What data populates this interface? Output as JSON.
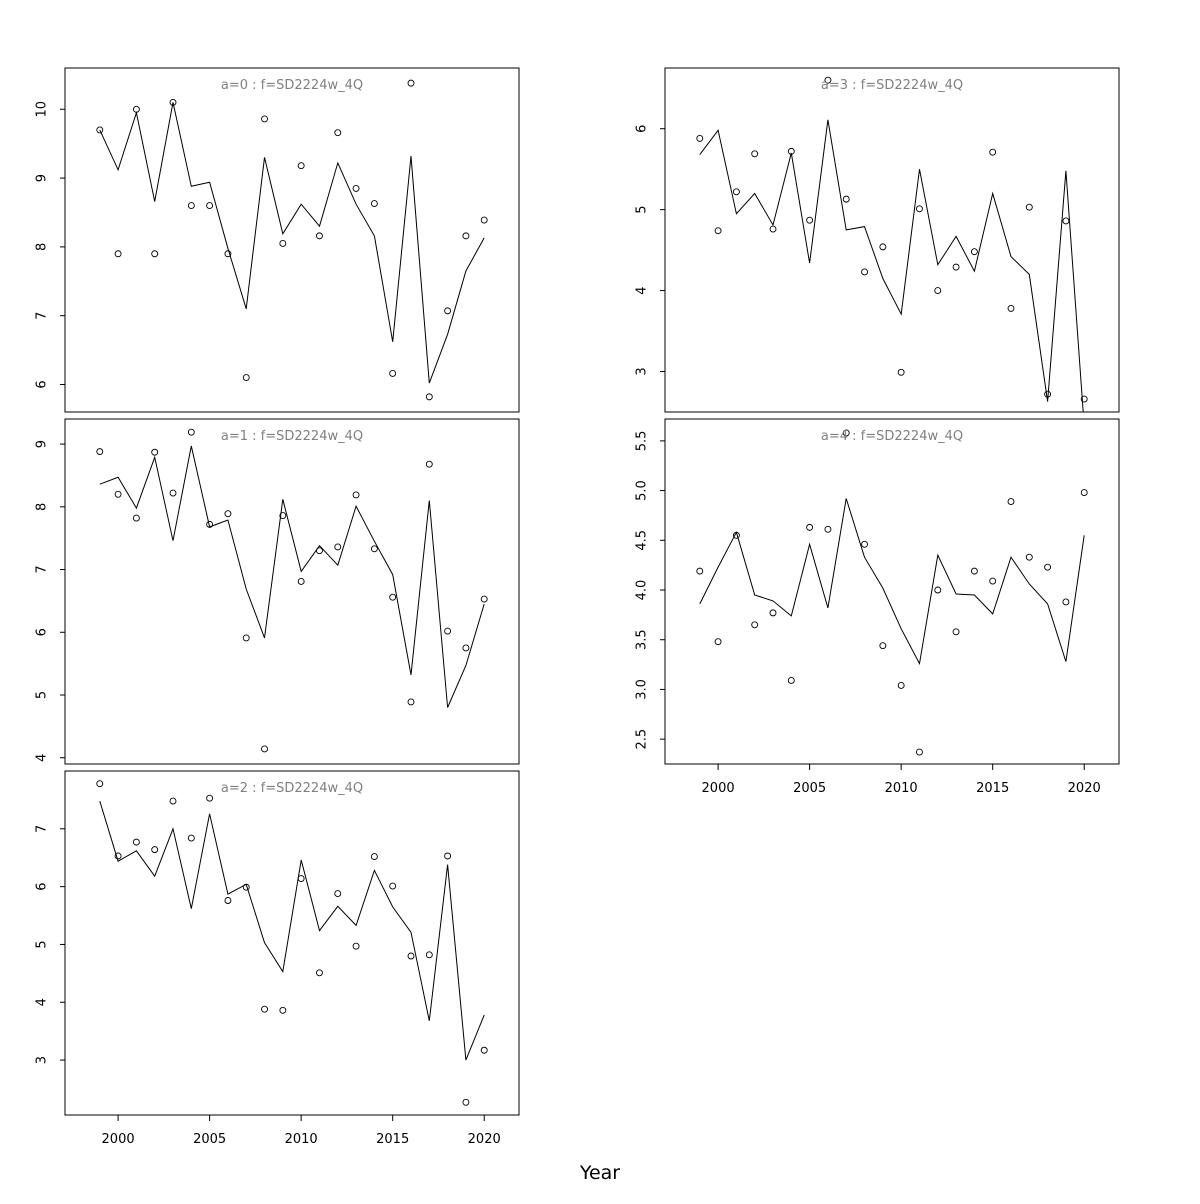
{
  "chart_data": {
    "type": "scatter",
    "xlabel": "Year",
    "panels": [
      {
        "title": "a=0  :  f=SD2224w_4Q",
        "ylim": [
          5.6,
          10.6
        ],
        "yticks": [
          6,
          7,
          8,
          9,
          10
        ],
        "ytick_labels": [
          "6",
          "7",
          "8",
          "9",
          "10"
        ],
        "x": [
          1999,
          2000,
          2001,
          2002,
          2003,
          2004,
          2005,
          2006,
          2007,
          2008,
          2009,
          2010,
          2011,
          2012,
          2013,
          2014,
          2015,
          2016,
          2017,
          2018,
          2019,
          2020
        ],
        "points": [
          9.7,
          7.9,
          10.0,
          7.9,
          10.1,
          8.6,
          8.6,
          7.9,
          6.1,
          9.86,
          8.05,
          9.18,
          8.16,
          9.66,
          8.85,
          8.63,
          6.16,
          10.38,
          5.82,
          7.07,
          8.16,
          8.39
        ],
        "line": [
          9.7,
          9.12,
          9.95,
          8.66,
          10.1,
          8.88,
          8.94,
          7.98,
          7.1,
          9.3,
          8.19,
          8.62,
          8.3,
          9.22,
          8.62,
          8.16,
          6.62,
          9.32,
          6.02,
          6.73,
          7.65,
          8.13
        ]
      },
      {
        "title": "a=1  :  f=SD2224w_4Q",
        "ylim": [
          3.9,
          9.4
        ],
        "yticks": [
          4,
          5,
          6,
          7,
          8,
          9
        ],
        "ytick_labels": [
          "4",
          "5",
          "6",
          "7",
          "8",
          "9"
        ],
        "x": [
          1999,
          2000,
          2001,
          2002,
          2003,
          2004,
          2005,
          2006,
          2007,
          2008,
          2009,
          2010,
          2011,
          2012,
          2013,
          2014,
          2015,
          2016,
          2017,
          2018,
          2019,
          2020
        ],
        "points": [
          8.88,
          8.2,
          7.82,
          8.87,
          8.22,
          9.19,
          7.72,
          7.89,
          5.91,
          4.14,
          7.86,
          6.81,
          7.3,
          7.36,
          8.19,
          7.33,
          6.56,
          4.89,
          8.68,
          6.02,
          5.75,
          6.53
        ],
        "line": [
          8.36,
          8.47,
          7.98,
          8.79,
          7.46,
          8.97,
          7.68,
          7.79,
          6.69,
          5.91,
          8.12,
          6.97,
          7.38,
          7.07,
          8.01,
          7.45,
          6.92,
          5.32,
          8.1,
          4.8,
          5.47,
          6.45
        ]
      },
      {
        "title": "a=2  :  f=SD2224w_4Q",
        "ylim": [
          2.05,
          8.0
        ],
        "yticks": [
          3,
          4,
          5,
          6,
          7
        ],
        "ytick_labels": [
          "3",
          "4",
          "5",
          "6",
          "7"
        ],
        "x": [
          1999,
          2000,
          2001,
          2002,
          2003,
          2004,
          2005,
          2006,
          2007,
          2008,
          2009,
          2010,
          2011,
          2012,
          2013,
          2014,
          2015,
          2016,
          2017,
          2018,
          2019,
          2020
        ],
        "points": [
          7.78,
          6.53,
          6.77,
          6.64,
          7.48,
          6.84,
          7.53,
          5.76,
          5.99,
          3.88,
          3.86,
          6.14,
          4.51,
          5.88,
          4.97,
          6.52,
          6.01,
          4.8,
          4.82,
          6.53,
          2.27,
          3.17
        ],
        "line": [
          7.48,
          6.44,
          6.62,
          6.18,
          7.0,
          5.62,
          7.26,
          5.87,
          6.04,
          5.03,
          4.53,
          6.46,
          5.24,
          5.66,
          5.33,
          6.28,
          5.65,
          5.21,
          3.68,
          6.38,
          3.0,
          3.78
        ]
      },
      {
        "title": "a=3  :  f=SD2224w_4Q",
        "ylim": [
          2.5,
          6.75
        ],
        "yticks": [
          3,
          4,
          5,
          6
        ],
        "ytick_labels": [
          "3",
          "4",
          "5",
          "6"
        ],
        "x": [
          1999,
          2000,
          2001,
          2002,
          2003,
          2004,
          2005,
          2006,
          2007,
          2008,
          2009,
          2010,
          2011,
          2012,
          2013,
          2014,
          2015,
          2016,
          2017,
          2018,
          2019,
          2020
        ],
        "points": [
          5.88,
          4.74,
          5.22,
          5.69,
          4.76,
          5.72,
          4.87,
          6.6,
          5.13,
          4.23,
          4.54,
          2.99,
          5.01,
          4.0,
          4.29,
          4.48,
          5.71,
          3.78,
          5.03,
          2.72,
          4.86,
          2.66
        ],
        "line": [
          5.68,
          5.98,
          4.95,
          5.2,
          4.81,
          5.7,
          4.34,
          6.11,
          4.75,
          4.79,
          4.15,
          3.71,
          5.5,
          4.32,
          4.67,
          4.24,
          5.2,
          4.42,
          4.2,
          2.63,
          5.48,
          2.33
        ]
      },
      {
        "title": "a=4  :  f=SD2224w_4Q",
        "ylim": [
          2.25,
          5.72
        ],
        "yticks": [
          2.5,
          3.0,
          3.5,
          4.0,
          4.5,
          5.0,
          5.5
        ],
        "ytick_labels": [
          "2.5",
          "3.0",
          "3.5",
          "4.0",
          "4.5",
          "5.0",
          "5.5"
        ],
        "x": [
          1999,
          2000,
          2001,
          2002,
          2003,
          2004,
          2005,
          2006,
          2007,
          2008,
          2009,
          2010,
          2011,
          2012,
          2013,
          2014,
          2015,
          2016,
          2017,
          2018,
          2019,
          2020
        ],
        "points": [
          4.19,
          3.48,
          4.55,
          3.65,
          3.77,
          3.09,
          4.63,
          4.61,
          5.58,
          4.46,
          3.44,
          3.04,
          2.37,
          4.0,
          3.58,
          4.19,
          4.09,
          4.89,
          4.33,
          4.23,
          3.88,
          4.98
        ],
        "line": [
          3.86,
          4.23,
          4.58,
          3.95,
          3.89,
          3.74,
          4.46,
          3.82,
          4.92,
          4.33,
          4.02,
          3.61,
          3.26,
          4.35,
          3.96,
          3.95,
          3.76,
          4.33,
          4.06,
          3.86,
          3.28,
          4.55
        ]
      }
    ],
    "xlim": [
      1997.1,
      2021.9
    ],
    "xticks": [
      2000,
      2005,
      2010,
      2015,
      2020
    ],
    "xtick_labels": [
      "2000",
      "2005",
      "2010",
      "2015",
      "2020"
    ]
  }
}
